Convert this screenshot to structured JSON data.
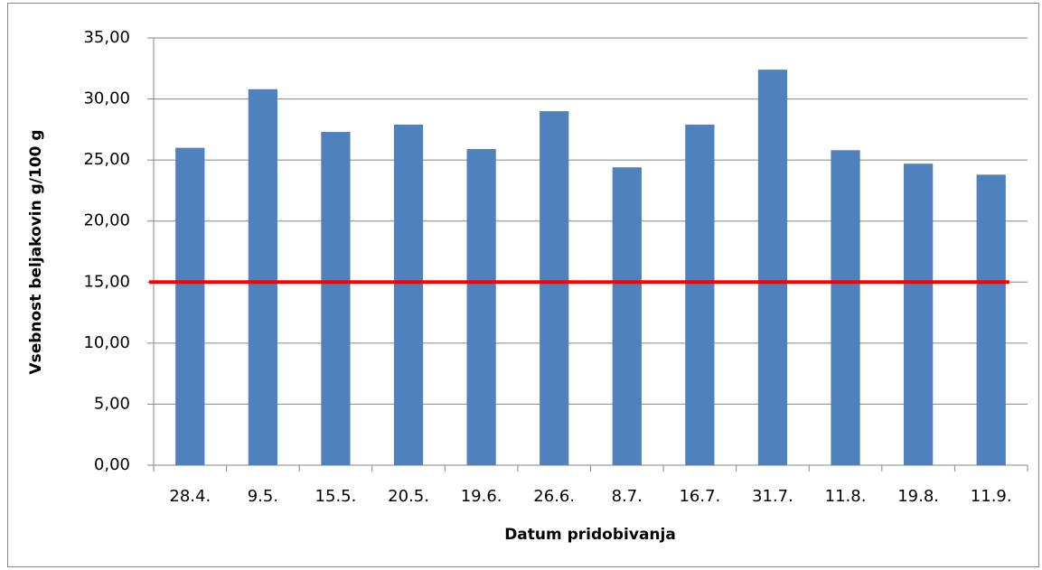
{
  "chart_data": {
    "type": "bar",
    "x_label": "Datum pridobivanja",
    "y_label": "Vsebnost beljakovin g/100 g",
    "categories": [
      "28.4.",
      "9.5.",
      "15.5.",
      "20.5.",
      "19.6.",
      "26.6.",
      "8.7.",
      "16.7.",
      "31.7.",
      "11.8.",
      "19.8.",
      "11.9."
    ],
    "values": [
      26.0,
      30.8,
      27.3,
      27.9,
      25.9,
      29.0,
      24.4,
      27.9,
      32.4,
      25.8,
      24.7,
      23.8
    ],
    "color": "#4f81bd",
    "reference_line": {
      "value": 15,
      "color": "#ff0000"
    },
    "ylim": [
      0,
      35
    ],
    "yticks": [
      {
        "value": 0,
        "label": "0,00"
      },
      {
        "value": 5,
        "label": "5,00"
      },
      {
        "value": 10,
        "label": "10,00"
      },
      {
        "value": 15,
        "label": "15,00"
      },
      {
        "value": 20,
        "label": "20,00"
      },
      {
        "value": 25,
        "label": "25,00"
      },
      {
        "value": 30,
        "label": "30,00"
      },
      {
        "value": 35,
        "label": "35,00"
      }
    ],
    "grid": true
  }
}
